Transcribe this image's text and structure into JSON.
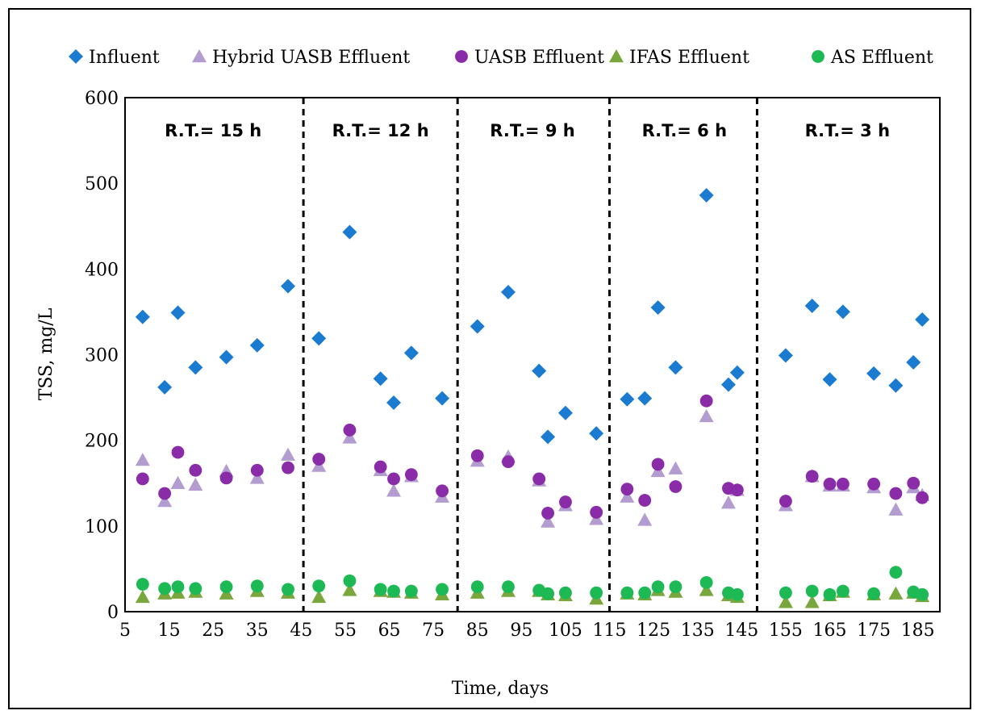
{
  "chart_data": {
    "type": "scatter",
    "xlabel": "Time, days",
    "ylabel": "TSS, mg/L",
    "xlim": [
      5,
      190
    ],
    "ylim": [
      0,
      600
    ],
    "x_ticks": [
      5,
      15,
      25,
      35,
      45,
      55,
      65,
      75,
      85,
      95,
      105,
      115,
      125,
      135,
      145,
      155,
      165,
      175,
      185
    ],
    "y_ticks": [
      0,
      100,
      200,
      300,
      400,
      500,
      600
    ],
    "grid": false,
    "legend_position": "top",
    "period_boundaries": [
      45.5,
      80.5,
      115,
      148.5
    ],
    "period_labels": [
      {
        "text": "R.T.= 15 h",
        "x": 25
      },
      {
        "text": "R.T.= 12 h",
        "x": 63
      },
      {
        "text": "R.T.= 9 h",
        "x": 97.5
      },
      {
        "text": "R.T.= 6 h",
        "x": 132
      },
      {
        "text": "R.T.= 3 h",
        "x": 169
      }
    ],
    "series": [
      {
        "name": "Influent",
        "marker": "diamond",
        "color": "#1a7bd0",
        "points": [
          [
            9,
            344
          ],
          [
            14,
            262
          ],
          [
            17,
            349
          ],
          [
            21,
            285
          ],
          [
            28,
            297
          ],
          [
            35,
            311
          ],
          [
            42,
            380
          ],
          [
            49,
            319
          ],
          [
            56,
            443
          ],
          [
            63,
            272
          ],
          [
            66,
            244
          ],
          [
            70,
            302
          ],
          [
            77,
            249
          ],
          [
            85,
            333
          ],
          [
            92,
            373
          ],
          [
            99,
            281
          ],
          [
            101,
            204
          ],
          [
            105,
            232
          ],
          [
            112,
            208
          ],
          [
            119,
            248
          ],
          [
            123,
            249
          ],
          [
            126,
            355
          ],
          [
            130,
            285
          ],
          [
            137,
            486
          ],
          [
            142,
            265
          ],
          [
            144,
            279
          ],
          [
            155,
            299
          ],
          [
            161,
            357
          ],
          [
            165,
            271
          ],
          [
            168,
            350
          ],
          [
            175,
            278
          ],
          [
            180,
            264
          ],
          [
            184,
            291
          ],
          [
            186,
            341
          ]
        ]
      },
      {
        "name": "Hybrid UASB Effluent",
        "marker": "triangle",
        "color": "#b39ccf",
        "points": [
          [
            9,
            177
          ],
          [
            14,
            129
          ],
          [
            17,
            150
          ],
          [
            21,
            148
          ],
          [
            28,
            164
          ],
          [
            35,
            156
          ],
          [
            42,
            183
          ],
          [
            49,
            170
          ],
          [
            56,
            203
          ],
          [
            63,
            165
          ],
          [
            66,
            141
          ],
          [
            70,
            158
          ],
          [
            77,
            134
          ],
          [
            85,
            176
          ],
          [
            92,
            181
          ],
          [
            99,
            153
          ],
          [
            101,
            105
          ],
          [
            105,
            124
          ],
          [
            112,
            108
          ],
          [
            119,
            134
          ],
          [
            123,
            107
          ],
          [
            126,
            164
          ],
          [
            130,
            167
          ],
          [
            137,
            228
          ],
          [
            142,
            127
          ],
          [
            144,
            142
          ],
          [
            155,
            124
          ],
          [
            161,
            158
          ],
          [
            165,
            147
          ],
          [
            168,
            147
          ],
          [
            175,
            145
          ],
          [
            180,
            119
          ],
          [
            184,
            145
          ],
          [
            186,
            136
          ]
        ]
      },
      {
        "name": "UASB Effluent",
        "marker": "circle",
        "color": "#8a2ba8",
        "points": [
          [
            9,
            155
          ],
          [
            14,
            138
          ],
          [
            17,
            186
          ],
          [
            21,
            165
          ],
          [
            28,
            156
          ],
          [
            35,
            165
          ],
          [
            42,
            168
          ],
          [
            49,
            178
          ],
          [
            56,
            212
          ],
          [
            63,
            169
          ],
          [
            66,
            155
          ],
          [
            70,
            160
          ],
          [
            77,
            141
          ],
          [
            85,
            182
          ],
          [
            92,
            175
          ],
          [
            99,
            155
          ],
          [
            101,
            115
          ],
          [
            105,
            128
          ],
          [
            112,
            116
          ],
          [
            119,
            143
          ],
          [
            123,
            130
          ],
          [
            126,
            172
          ],
          [
            130,
            146
          ],
          [
            137,
            246
          ],
          [
            142,
            144
          ],
          [
            144,
            142
          ],
          [
            155,
            129
          ],
          [
            161,
            158
          ],
          [
            165,
            149
          ],
          [
            168,
            149
          ],
          [
            175,
            149
          ],
          [
            180,
            138
          ],
          [
            184,
            150
          ],
          [
            186,
            133
          ]
        ]
      },
      {
        "name": "IFAS Effluent",
        "marker": "triangle",
        "color": "#7aa63e",
        "points": [
          [
            9,
            17
          ],
          [
            14,
            21
          ],
          [
            17,
            22
          ],
          [
            21,
            23
          ],
          [
            28,
            21
          ],
          [
            35,
            24
          ],
          [
            42,
            22
          ],
          [
            49,
            17
          ],
          [
            56,
            25
          ],
          [
            63,
            24
          ],
          [
            66,
            23
          ],
          [
            70,
            22
          ],
          [
            77,
            20
          ],
          [
            85,
            22
          ],
          [
            92,
            24
          ],
          [
            99,
            24
          ],
          [
            101,
            20
          ],
          [
            105,
            19
          ],
          [
            112,
            15
          ],
          [
            119,
            21
          ],
          [
            123,
            20
          ],
          [
            126,
            25
          ],
          [
            130,
            23
          ],
          [
            137,
            25
          ],
          [
            142,
            19
          ],
          [
            144,
            17
          ],
          [
            155,
            11
          ],
          [
            161,
            11
          ],
          [
            165,
            19
          ],
          [
            168,
            23
          ],
          [
            175,
            20
          ],
          [
            180,
            21
          ],
          [
            184,
            22
          ],
          [
            186,
            18
          ]
        ]
      },
      {
        "name": "AS Effluent",
        "marker": "circle",
        "color": "#1db954",
        "points": [
          [
            9,
            32
          ],
          [
            14,
            27
          ],
          [
            17,
            29
          ],
          [
            21,
            27
          ],
          [
            28,
            29
          ],
          [
            35,
            30
          ],
          [
            42,
            26
          ],
          [
            49,
            30
          ],
          [
            56,
            36
          ],
          [
            63,
            26
          ],
          [
            66,
            24
          ],
          [
            70,
            24
          ],
          [
            77,
            26
          ],
          [
            85,
            29
          ],
          [
            92,
            29
          ],
          [
            99,
            25
          ],
          [
            101,
            21
          ],
          [
            105,
            22
          ],
          [
            112,
            22
          ],
          [
            119,
            22
          ],
          [
            123,
            22
          ],
          [
            126,
            29
          ],
          [
            130,
            29
          ],
          [
            137,
            34
          ],
          [
            142,
            22
          ],
          [
            144,
            20
          ],
          [
            155,
            22
          ],
          [
            161,
            24
          ],
          [
            165,
            20
          ],
          [
            168,
            24
          ],
          [
            175,
            21
          ],
          [
            180,
            46
          ],
          [
            184,
            23
          ],
          [
            186,
            20
          ]
        ]
      }
    ]
  }
}
